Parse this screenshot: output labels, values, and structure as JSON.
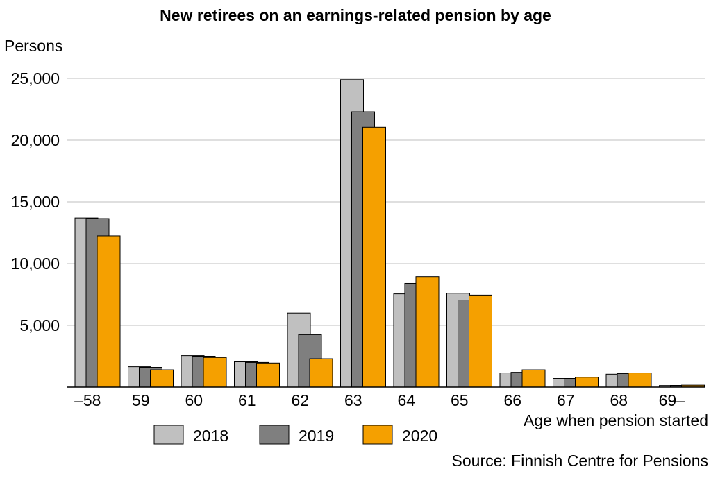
{
  "chart_data": {
    "type": "bar",
    "title": "New retirees on an earnings-related pension by age",
    "ylabel": "Persons",
    "xlabel": "Age when pension started",
    "source": "Source: Finnish Centre for Pensions",
    "categories": [
      "–58",
      "59",
      "60",
      "61",
      "62",
      "63",
      "64",
      "65",
      "66",
      "67",
      "68",
      "69–"
    ],
    "ylim": [
      0,
      25000
    ],
    "yticks": [
      5000,
      10000,
      15000,
      20000,
      25000
    ],
    "ytick_labels": [
      "5,000",
      "10,000",
      "15,000",
      "20,000",
      "25,000"
    ],
    "grid": true,
    "legend_position": "bottom",
    "series": [
      {
        "name": "2018",
        "color": "#c0c0c0",
        "values": [
          13700,
          1650,
          2550,
          2050,
          6000,
          24900,
          7550,
          7600,
          1150,
          700,
          1050,
          130
        ]
      },
      {
        "name": "2019",
        "color": "#7f7f7f",
        "values": [
          13650,
          1600,
          2500,
          2000,
          4250,
          22300,
          8400,
          7050,
          1200,
          700,
          1100,
          140
        ]
      },
      {
        "name": "2020",
        "color": "#f5a000",
        "values": [
          12250,
          1400,
          2400,
          1950,
          2300,
          21050,
          8950,
          7450,
          1400,
          800,
          1150,
          160
        ]
      }
    ]
  }
}
